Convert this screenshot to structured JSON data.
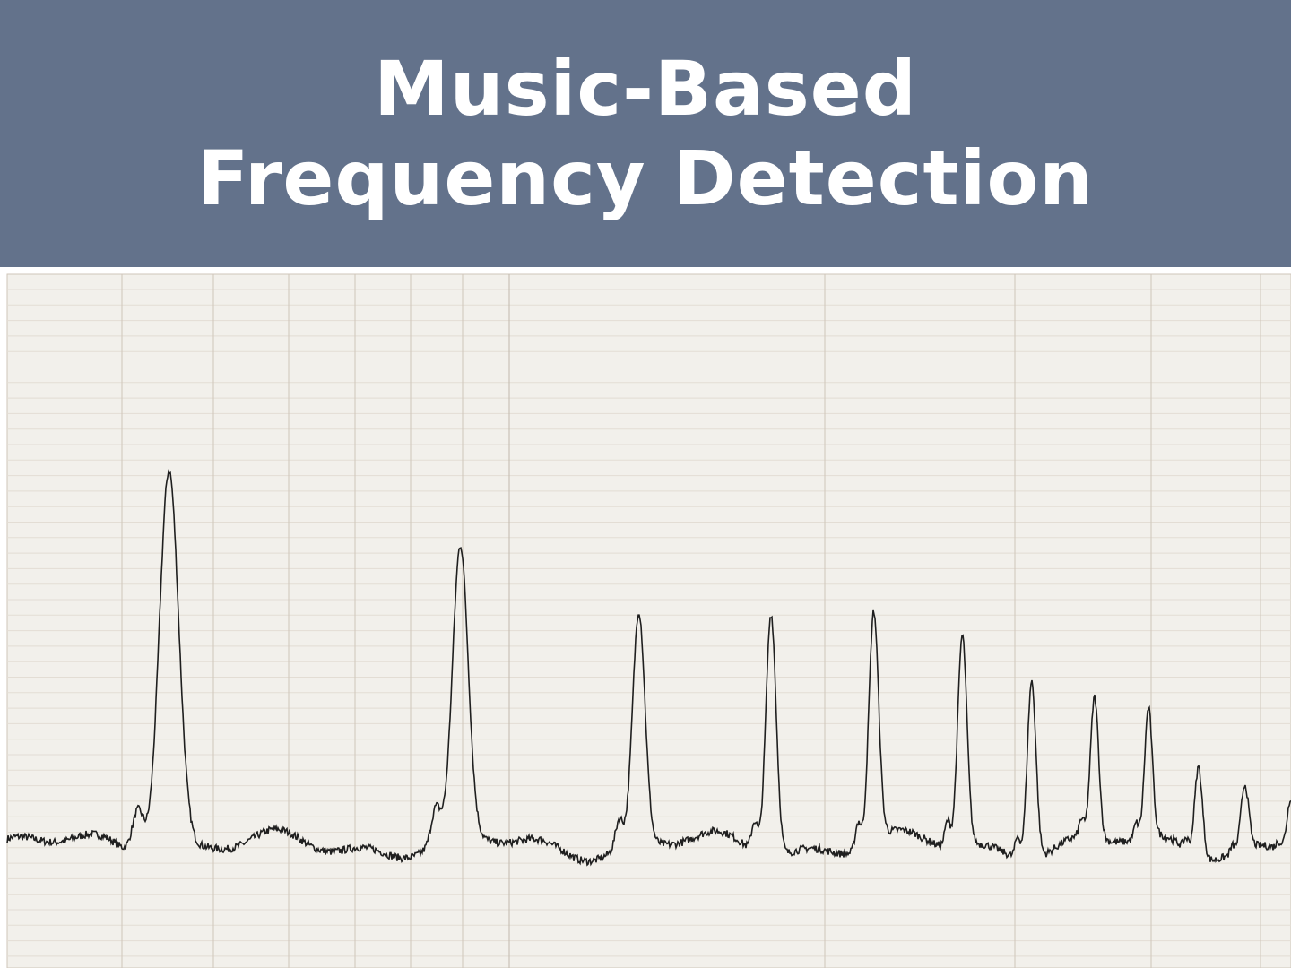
{
  "title": {
    "line1": "Music-Based",
    "line2": "Frequency Detection"
  },
  "colors": {
    "banner": "#63728b",
    "title_text": "#ffffff",
    "plot_background": "#f2f0eb",
    "grid_minor": "#e3ddd4",
    "grid_major": "#cfc6ba",
    "line": "#1f1f1f"
  },
  "chart_data": {
    "type": "line",
    "title": "",
    "xlabel": "",
    "ylabel": "",
    "grid": true,
    "legend": "none",
    "baseline": 0.08,
    "peaks": [
      {
        "x": 0.126,
        "height": 0.6,
        "width": 0.0075
      },
      {
        "x": 0.353,
        "height": 0.45,
        "width": 0.006
      },
      {
        "x": 0.492,
        "height": 0.36,
        "width": 0.0048
      },
      {
        "x": 0.595,
        "height": 0.38,
        "width": 0.004
      },
      {
        "x": 0.675,
        "height": 0.36,
        "width": 0.0038
      },
      {
        "x": 0.744,
        "height": 0.33,
        "width": 0.0036
      },
      {
        "x": 0.798,
        "height": 0.28,
        "width": 0.0034
      },
      {
        "x": 0.847,
        "height": 0.22,
        "width": 0.0032
      },
      {
        "x": 0.889,
        "height": 0.2,
        "width": 0.003
      },
      {
        "x": 0.928,
        "height": 0.14,
        "width": 0.003
      },
      {
        "x": 0.964,
        "height": 0.1,
        "width": 0.003
      },
      {
        "x": 1.0,
        "height": 0.08,
        "width": 0.003
      }
    ]
  }
}
